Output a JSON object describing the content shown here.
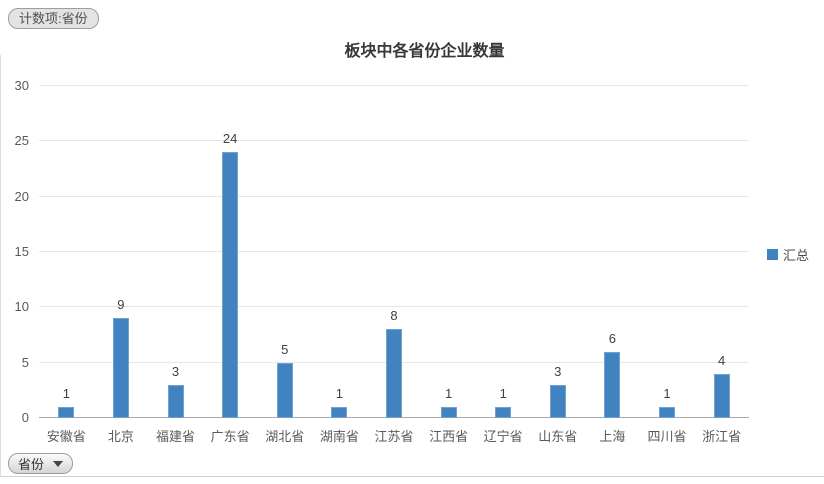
{
  "badge": {
    "label": "计数项:省份"
  },
  "chart_data": {
    "type": "bar",
    "title": "板块中各省份企业数量",
    "categories": [
      "安徽省",
      "北京",
      "福建省",
      "广东省",
      "湖北省",
      "湖南省",
      "江苏省",
      "江西省",
      "辽宁省",
      "山东省",
      "上海",
      "四川省",
      "浙江省"
    ],
    "series": [
      {
        "name": "汇总",
        "values": [
          1,
          9,
          3,
          24,
          5,
          1,
          8,
          1,
          1,
          3,
          6,
          1,
          4
        ]
      }
    ],
    "xlabel": "",
    "ylabel": "",
    "ylim": [
      0,
      30
    ],
    "yticks": [
      0,
      5,
      10,
      15,
      20,
      25,
      30
    ],
    "grid": "horizontal",
    "legend_position": "right",
    "bar_color": "#4182c0",
    "data_labels": true
  },
  "legend": {
    "items": [
      {
        "label": "汇总",
        "color": "#4182c0"
      }
    ]
  },
  "filter": {
    "label": "省份",
    "icon": "chevron-down"
  }
}
